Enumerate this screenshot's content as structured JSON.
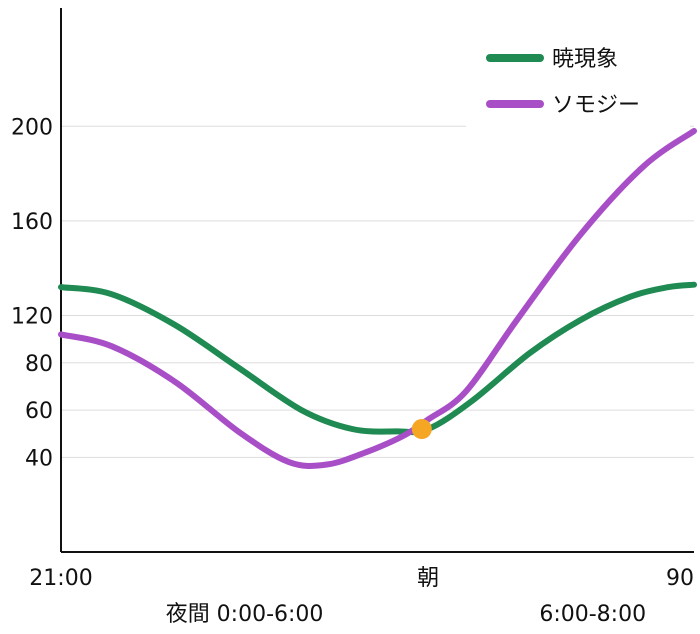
{
  "chart_data": {
    "type": "line",
    "xlim": [
      0,
      100
    ],
    "ylim": [
      0,
      230
    ],
    "y_ticks": [
      40,
      60,
      80,
      120,
      160,
      200
    ],
    "y_tick_positions": [
      40,
      60,
      80,
      100,
      140,
      180
    ],
    "x_tick_labels": [
      {
        "x": 0,
        "label": "21:00"
      },
      {
        "x": 58,
        "label": "朝"
      },
      {
        "x": 100,
        "label": "90"
      }
    ],
    "sub_labels": [
      {
        "x": 29,
        "label": "夜間 0:00-6:00"
      },
      {
        "x": 84,
        "label": "6:00-8:00"
      }
    ],
    "grid": true,
    "legend": "top-right",
    "series": [
      {
        "name": "暁現象",
        "color": "#1f8a52",
        "points": [
          [
            0,
            112
          ],
          [
            8,
            109
          ],
          [
            18,
            96
          ],
          [
            28,
            78
          ],
          [
            38,
            60
          ],
          [
            46,
            52
          ],
          [
            53,
            51
          ],
          [
            58,
            52
          ],
          [
            65,
            64
          ],
          [
            74,
            84
          ],
          [
            82,
            98
          ],
          [
            90,
            108
          ],
          [
            96,
            112
          ],
          [
            100,
            113
          ]
        ]
      },
      {
        "name": "ソモジー",
        "color": "#a84fc7",
        "points": [
          [
            0,
            92
          ],
          [
            8,
            87
          ],
          [
            18,
            72
          ],
          [
            28,
            51
          ],
          [
            36,
            38
          ],
          [
            42,
            37
          ],
          [
            48,
            42
          ],
          [
            54,
            49
          ],
          [
            58,
            56
          ],
          [
            64,
            68
          ],
          [
            72,
            98
          ],
          [
            82,
            134
          ],
          [
            92,
            163
          ],
          [
            100,
            178
          ]
        ]
      }
    ],
    "marker": {
      "x": 57,
      "y": 52,
      "color": "#f5a623"
    }
  }
}
